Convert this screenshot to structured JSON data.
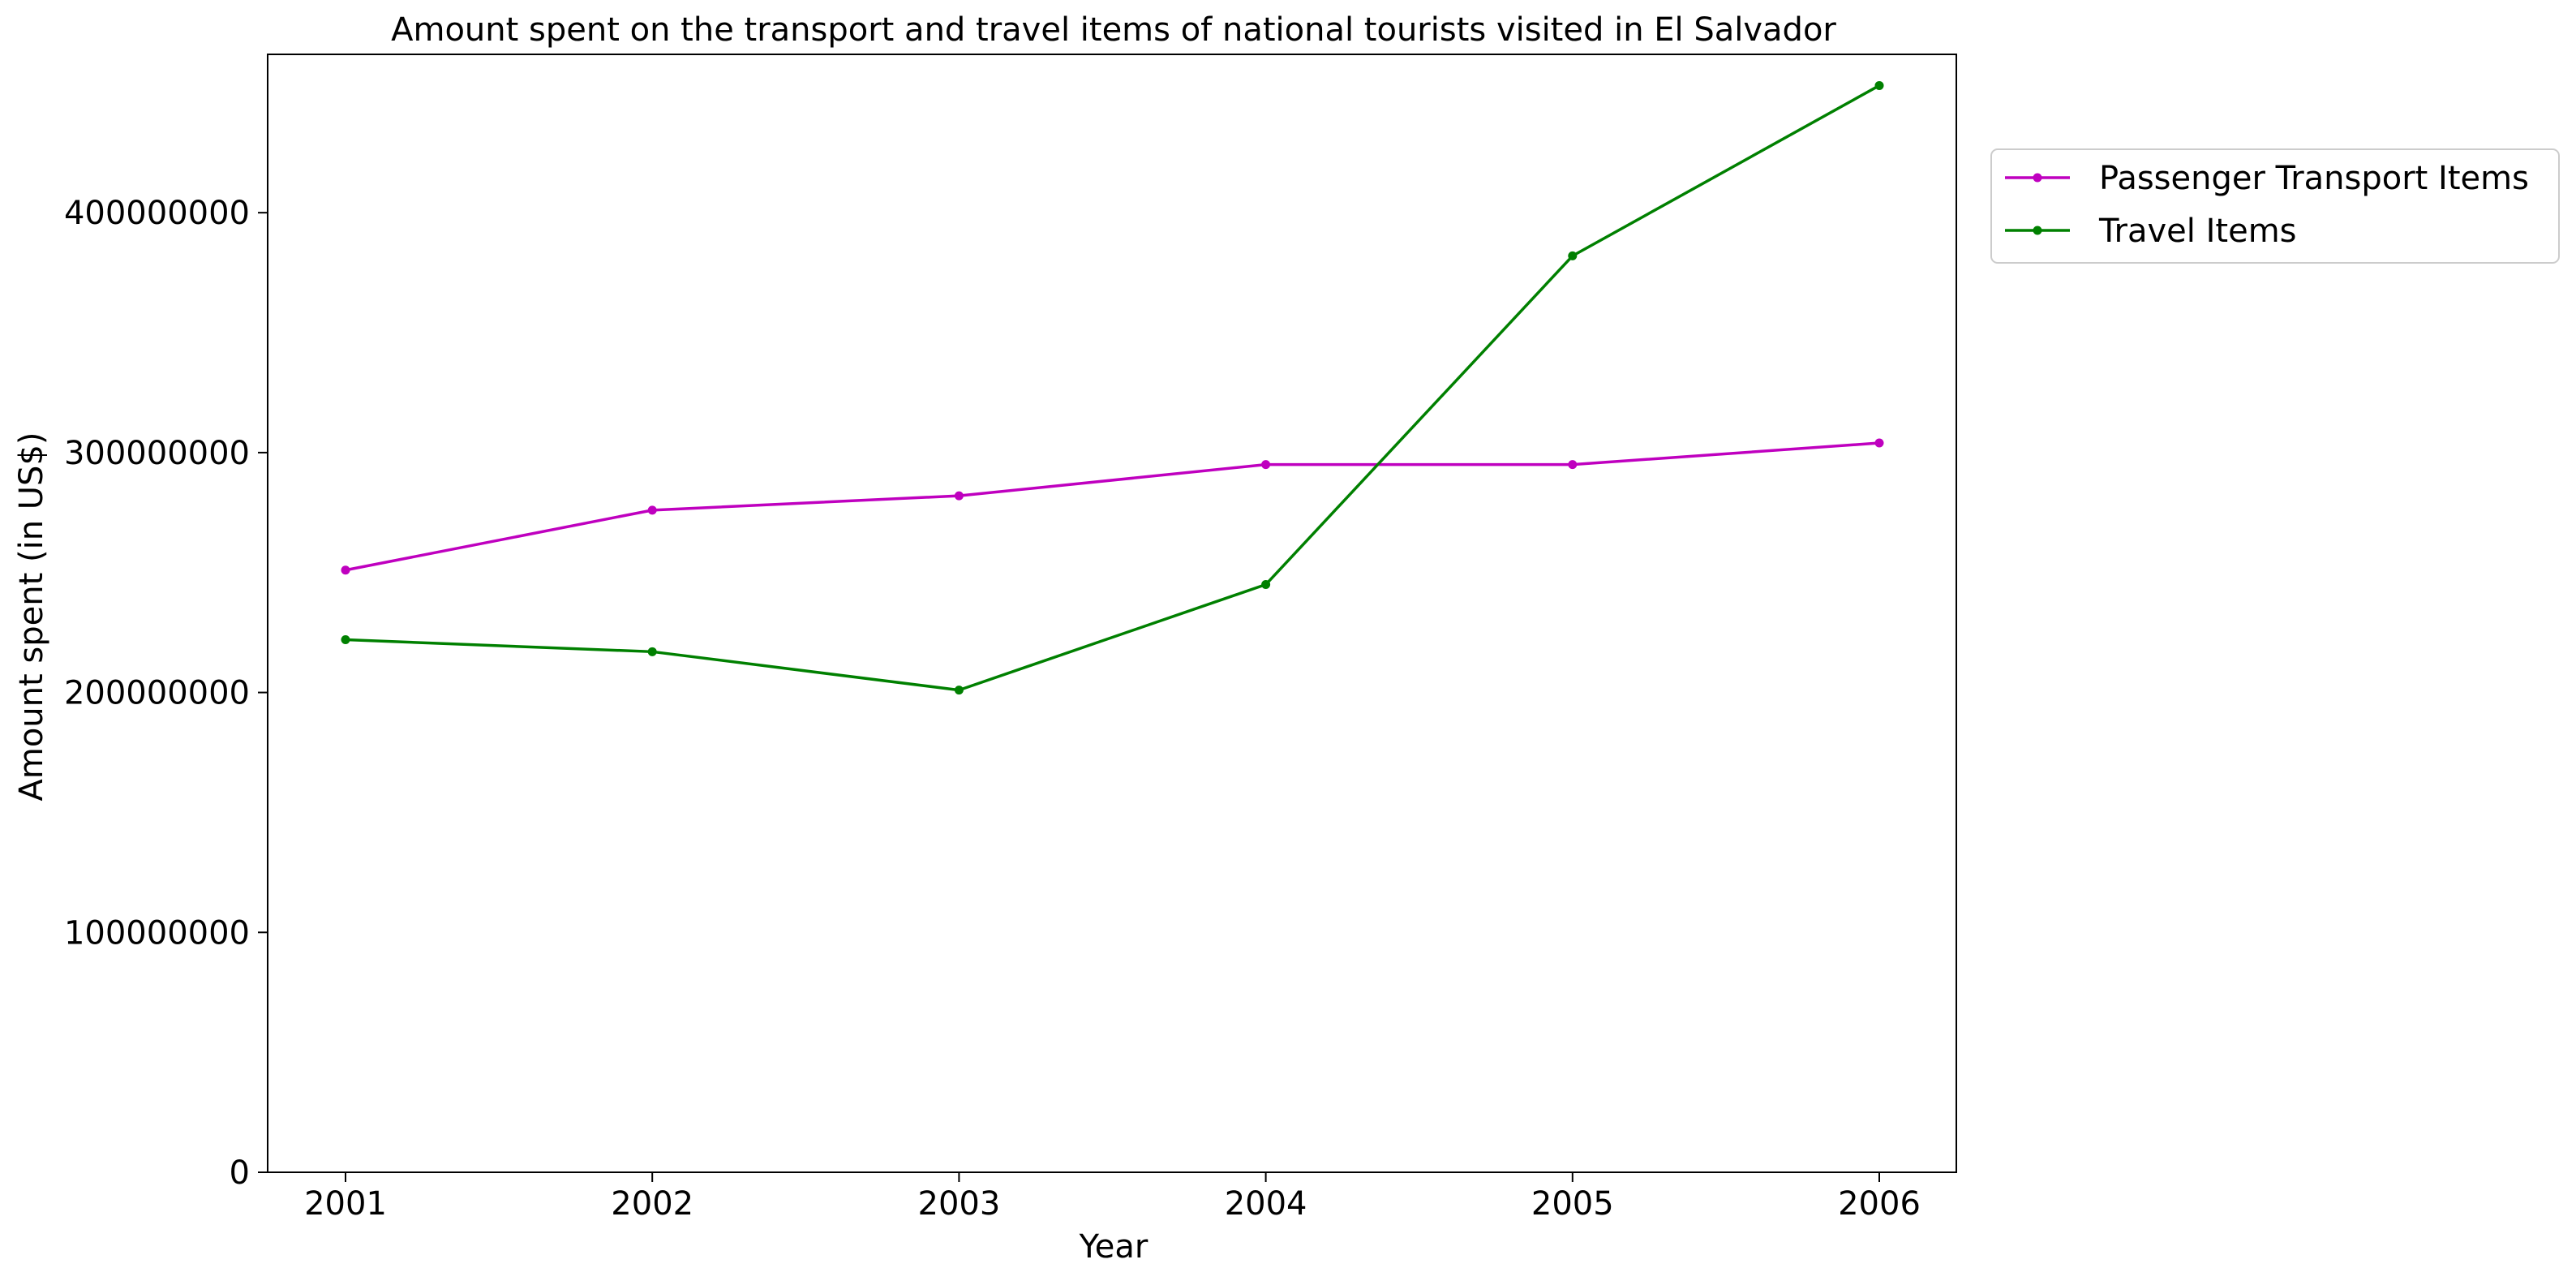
{
  "chart_data": {
    "type": "line",
    "title": "Amount spent on the transport and travel items of national tourists visited in El Salvador",
    "xlabel": "Year",
    "ylabel": "Amount spent (in US$)",
    "categories": [
      "2001",
      "2002",
      "2003",
      "2004",
      "2005",
      "2006"
    ],
    "yticks": [
      0,
      100000000,
      200000000,
      300000000,
      400000000
    ],
    "ytick_labels": [
      "0",
      "100000000",
      "200000000",
      "300000000",
      "400000000"
    ],
    "ylim": [
      0,
      466000000
    ],
    "grid": false,
    "legend_position": "outside-top-right",
    "series": [
      {
        "name": "Passenger Transport Items",
        "color": "#bf00bf",
        "marker": "circle",
        "values": [
          251000000,
          276000000,
          282000000,
          295000000,
          295000000,
          304000000
        ]
      },
      {
        "name": "Travel Items",
        "color": "#008000",
        "marker": "circle",
        "values": [
          222000000,
          217000000,
          201000000,
          245000000,
          382000000,
          453000000
        ]
      }
    ]
  }
}
